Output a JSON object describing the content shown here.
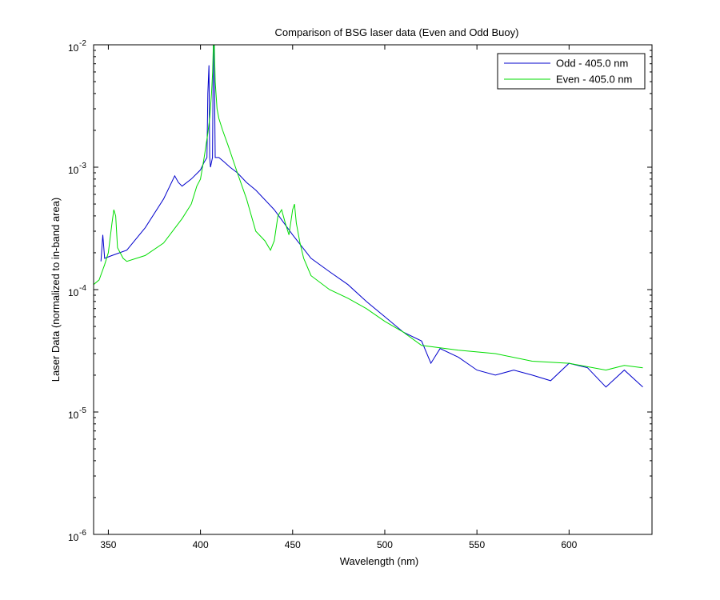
{
  "chart_data": {
    "type": "line",
    "title": "Comparison of BSG laser data (Even and Odd Buoy)",
    "xlabel": "Wavelength (nm)",
    "ylabel": "Laser Data (normalized to in-band area)",
    "xlim": [
      342,
      645
    ],
    "ylim": [
      1e-06,
      0.01
    ],
    "yscale": "log",
    "grid": false,
    "legend_position": "top-right",
    "x_ticks": [
      {
        "value": 350,
        "label": "350"
      },
      {
        "value": 400,
        "label": "400"
      },
      {
        "value": 450,
        "label": "450"
      },
      {
        "value": 500,
        "label": "500"
      },
      {
        "value": 550,
        "label": "550"
      },
      {
        "value": 600,
        "label": "600"
      }
    ],
    "y_ticks": [
      {
        "value": 1e-06,
        "base": "10",
        "exp": "-6"
      },
      {
        "value": 1e-05,
        "base": "10",
        "exp": "-5"
      },
      {
        "value": 0.0001,
        "base": "10",
        "exp": "-4"
      },
      {
        "value": 0.001,
        "base": "10",
        "exp": "-3"
      },
      {
        "value": 0.01,
        "base": "10",
        "exp": "-2"
      }
    ],
    "series": [
      {
        "name": "Odd - 405.0 nm",
        "color": "#0000cc",
        "x": [
          346,
          347,
          348,
          352,
          360,
          370,
          380,
          386,
          388,
          390,
          395,
          400,
          402,
          403.5,
          404,
          404.6,
          405,
          405.4,
          406,
          406.5,
          407,
          407.4,
          408,
          410,
          413,
          416,
          420,
          425,
          430,
          440,
          450,
          460,
          470,
          480,
          490,
          500,
          510,
          520,
          525,
          530,
          540,
          550,
          560,
          570,
          580,
          590,
          600,
          610,
          620,
          630,
          640
        ],
        "y": [
          0.00017,
          0.00028,
          0.00018,
          0.00019,
          0.00021,
          0.00032,
          0.00055,
          0.00085,
          0.00075,
          0.0007,
          0.0008,
          0.00095,
          0.0011,
          0.0012,
          0.004,
          0.0068,
          0.0012,
          0.001,
          0.0011,
          0.0012,
          0.01,
          0.01,
          0.0012,
          0.0012,
          0.0011,
          0.001,
          0.0009,
          0.00075,
          0.00065,
          0.00045,
          0.00028,
          0.00018,
          0.00014,
          0.00011,
          8e-05,
          6e-05,
          4.5e-05,
          3.8e-05,
          2.5e-05,
          3.3e-05,
          2.8e-05,
          2.2e-05,
          2e-05,
          2.2e-05,
          2e-05,
          1.8e-05,
          2.5e-05,
          2.3e-05,
          1.6e-05,
          2.2e-05,
          1.6e-05
        ]
      },
      {
        "name": "Even - 405.0 nm",
        "color": "#00dd00",
        "x": [
          342,
          345,
          348,
          350,
          352,
          353,
          354,
          355,
          358,
          360,
          370,
          380,
          390,
          395,
          398,
          400,
          402,
          404,
          405,
          406,
          406.6,
          407,
          407.5,
          408,
          409,
          410,
          412,
          415,
          420,
          425,
          430,
          435,
          438,
          440,
          442,
          444,
          446,
          448,
          450,
          451,
          452,
          454,
          456,
          460,
          470,
          480,
          490,
          500,
          510,
          520,
          540,
          560,
          580,
          600,
          620,
          630,
          640
        ],
        "y": [
          0.00011,
          0.00012,
          0.00016,
          0.0002,
          0.00035,
          0.00045,
          0.0004,
          0.00022,
          0.00018,
          0.00017,
          0.00019,
          0.00024,
          0.00038,
          0.0005,
          0.0007,
          0.0008,
          0.0012,
          0.0019,
          0.0025,
          0.004,
          0.006,
          0.01,
          0.01,
          0.005,
          0.003,
          0.0025,
          0.002,
          0.0015,
          0.0009,
          0.00055,
          0.0003,
          0.00025,
          0.00021,
          0.00025,
          0.0004,
          0.00045,
          0.00035,
          0.00028,
          0.00045,
          0.0005,
          0.00035,
          0.00024,
          0.00018,
          0.00013,
          0.0001,
          8.5e-05,
          7e-05,
          5.5e-05,
          4.5e-05,
          3.5e-05,
          3.2e-05,
          3e-05,
          2.6e-05,
          2.5e-05,
          2.2e-05,
          2.4e-05,
          2.3e-05
        ]
      }
    ]
  }
}
